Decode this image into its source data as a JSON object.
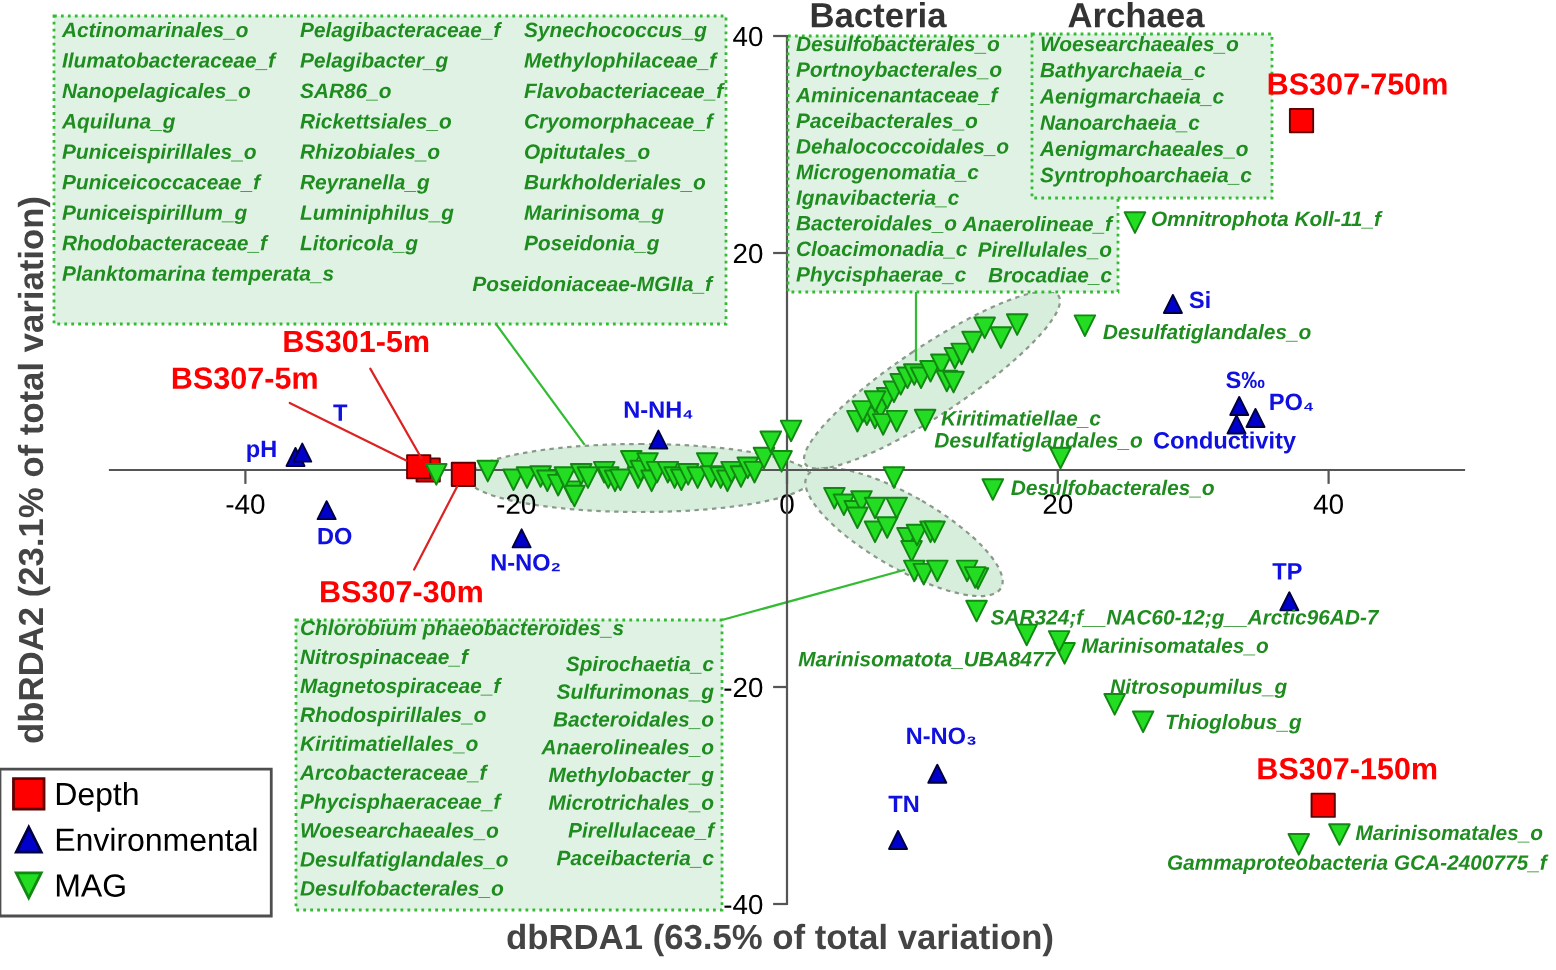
{
  "chart_data": {
    "type": "scatter",
    "xlabel": "dbRDA1 (63.5% of total variation)",
    "ylabel": "dbRDA2 (23.1% of total variation)",
    "xlim": [
      -50,
      50
    ],
    "ylim": [
      -40,
      40
    ],
    "xticks": [
      -40,
      -20,
      0,
      20,
      40
    ],
    "yticks": [
      -40,
      -20,
      20,
      40
    ],
    "grid": false,
    "legend": "bottom left",
    "series": [
      {
        "name": "Depth",
        "color": "#ff0000",
        "marker": "square",
        "x": [
          -26.5,
          -27.2,
          -23.9,
          38.0,
          39.6
        ],
        "values": [
          0.0,
          0.3,
          -0.4,
          32.2,
          -30.9
        ]
      },
      {
        "name": "Environmental",
        "color": "#0000cc",
        "marker": "triangle",
        "x": [
          -36.3,
          -35.8,
          -34.0,
          -19.6,
          -9.5,
          28.5,
          33.4,
          34.6,
          33.2,
          37.1,
          11.1,
          8.2
        ],
        "values": [
          1.2,
          1.6,
          -3.7,
          -6.3,
          2.8,
          15.3,
          5.9,
          4.8,
          4.2,
          -12.1,
          -28.0,
          -34.1
        ]
      },
      {
        "name": "MAG",
        "color": "#22dd22",
        "marker": "triangle_down",
        "x": [
          -25.9,
          -22.1,
          -20.2,
          -19.2,
          -18.2,
          -17.7,
          -16.9,
          -15.9,
          -15.7,
          -16.4,
          -15.2,
          -14.7,
          -13.5,
          -13.2,
          -12.7,
          -12.3,
          -11.5,
          -11.0,
          -10.8,
          -10.3,
          -10.0,
          -9.6,
          -8.8,
          -8.3,
          -7.8,
          -7.3,
          -6.6,
          -5.9,
          -5.6,
          -4.9,
          -4.4,
          -4.1,
          -3.4,
          -2.9,
          -2.4,
          -1.7,
          -1.2,
          -0.4,
          0.3,
          5.2,
          5.9,
          6.5,
          6.9,
          7.4,
          7.9,
          8.4,
          8.9,
          9.4,
          9.9,
          10.6,
          11.4,
          11.8,
          12.4,
          5.6,
          6.5,
          7.1,
          8.1,
          12.3,
          12.9,
          13.7,
          15.8,
          14.6,
          17.0,
          7.9,
          3.5,
          4.2,
          5.0,
          5.5,
          6.5,
          5.2,
          6.5,
          7.4,
          8.1,
          8.9,
          9.2,
          9.6,
          10.6,
          9.4,
          10.1,
          11.1,
          13.3,
          14.1,
          10.9,
          13.9,
          20.5,
          25.7,
          22.0,
          10.2,
          20.2,
          15.2,
          14.0,
          17.7,
          20.1,
          24.2,
          26.3,
          40.8,
          37.8
        ],
        "values": [
          -0.4,
          -0.1,
          -0.9,
          -0.7,
          -0.6,
          -1.0,
          -1.4,
          -2.0,
          -2.4,
          -0.7,
          -0.4,
          -0.7,
          -0.2,
          -0.7,
          -1.0,
          -0.9,
          0.8,
          -0.7,
          -0.1,
          0.6,
          -1.0,
          -0.2,
          -0.2,
          -0.7,
          -0.9,
          -0.4,
          -0.7,
          0.6,
          -0.6,
          -0.7,
          -1.0,
          -0.2,
          -0.6,
          0.2,
          -0.2,
          1.1,
          2.6,
          0.8,
          3.6,
          4.5,
          5.1,
          4.8,
          5.7,
          6.6,
          7.2,
          7.9,
          8.5,
          8.8,
          8.5,
          9.1,
          9.7,
          8.2,
          10.3,
          5.4,
          6.3,
          4.2,
          4.5,
          8.1,
          10.7,
          11.8,
          12.2,
          13.1,
          13.4,
          -0.7,
          -2.6,
          -3.2,
          -3.8,
          -2.9,
          -3.5,
          -4.4,
          -5.7,
          -5.3,
          -3.5,
          -6.3,
          -7.5,
          -6.0,
          -5.7,
          -9.3,
          -9.6,
          -9.3,
          -9.3,
          -10.0,
          -5.7,
          -9.9,
          -16.9,
          22.8,
          13.3,
          4.6,
          1.1,
          -1.8,
          -13.0,
          -15.2,
          -15.8,
          -21.6,
          -23.2,
          -33.6,
          -34.5
        ]
      }
    ],
    "annotations": [
      "Bacteria",
      "Archaea",
      "Actinomarinales_o\nIlumatobacteraceae_f\nNanopelagicales_o\nAquiluna_g\nPuniceispirillales_o\nPuniceicoccaceae_f\nPuniceispirillum_g\nRhodobacteraceae_f\nPlanktomarina temperata_s",
      "Pelagibacteraceae_f\nPelagibacter_g\nSAR86_o\nRickettsiales_o\nRhizobiales_o\nReyranella_g\nLuminiphilus_g\nLitoricola_g",
      "Synechococcus_g\nMethylophilaceae_f\nFlavobacteriaceae_f\nCryomorphaceae_f\nOpitutales_o\nBurkholderiales_o\nMarinisoma_g\nPoseidonia_g",
      "Poseidoniaceae-MGIIa_f",
      "Desulfobacterales_o\nPortnoybacterales_o\nAminicenantaceae_f\nPaceibacterales_o\nDehalococcoidales_o\nMicrogenomatia_c\nIgnavibacteria_c\nBacteroidales_o\nCloacimonadia_c\nPhycisphaerae_c",
      "Anaerolineae_f\nPirellulales_o\nBrocadiae_c",
      "Woesearchaeales_o\nBathyarchaeia_c\nAenigmarchaeia_c\nNanoarchaeia_c\nAenigmarchaeales_o\nSyntrophoarchaeia_c",
      "Chlorobium phaeobacteroides_s\nNitrospinaceae_f\nMagnetospiraceae_f\nRhodospirillales_o\nKiritimatiellales_o\nArcobacteraceae_f\nPhycisphaeraceae_f\nWoesearchaeales_o\nDesulfatiglandales_o\nDesulfobacterales_o",
      "Spirochaetia_c\nSulfurimonas_g\nBacteroidales_o\nAnaerolineales_o\nMethylobacter_g\nMicrotrichales_o\nPirellulaceae_f\nPaceibacteria_c",
      {
        "text": "BS301-5m",
        "x": -26.5,
        "y": 0.0
      },
      {
        "text": "BS307-5m",
        "x": -27.2,
        "y": 0.3
      },
      {
        "text": "BS307-30m",
        "x": -23.9,
        "y": -0.4
      },
      {
        "text": "BS307-750m",
        "x": 38.0,
        "y": 32.2
      },
      {
        "text": "BS307-150m",
        "x": 39.6,
        "y": -30.9
      },
      {
        "text": "pH",
        "x": -36.3,
        "y": 1.2
      },
      {
        "text": "T",
        "x": -35.8,
        "y": 1.6
      },
      {
        "text": "DO",
        "x": -34.0,
        "y": -3.7
      },
      {
        "text": "N-NO₂",
        "x": -19.6,
        "y": -6.3
      },
      {
        "text": "N-NH₄",
        "x": -9.5,
        "y": 2.8
      },
      {
        "text": "Si",
        "x": 28.5,
        "y": 15.3
      },
      {
        "text": "S‰",
        "x": 33.4,
        "y": 5.9
      },
      {
        "text": "PO₄",
        "x": 34.6,
        "y": 4.8
      },
      {
        "text": "Conductivity",
        "x": 33.2,
        "y": 4.2
      },
      {
        "text": "TP",
        "x": 37.1,
        "y": -12.1
      },
      {
        "text": "N-NO₃",
        "x": 11.1,
        "y": -28.0
      },
      {
        "text": "TN",
        "x": 8.2,
        "y": -34.1
      },
      {
        "text": "Omnitrophota Koll-11_f",
        "x": 25.7,
        "y": 22.8
      },
      {
        "text": "Desulfatiglandales_o",
        "x": 22.0,
        "y": 13.3
      },
      {
        "text": "Kiritimatiellae_c",
        "x": 10.2,
        "y": 4.6
      },
      {
        "text": "Desulfatiglandales_o",
        "x": 20.2,
        "y": 1.1
      },
      {
        "text": "Desulfobacterales_o",
        "x": 15.2,
        "y": -1.8
      },
      {
        "text": "SAR324;f__NAC60-12;g__Arctic96AD-7",
        "x": 14.0,
        "y": -13.0
      },
      {
        "text": "Marinisomatota_UBA8477",
        "x": 17.7,
        "y": -15.2
      },
      {
        "text": "Marinisomatales_o",
        "x": 20.1,
        "y": -15.8
      },
      {
        "text": "Nitrosopumilus_g",
        "x": 24.2,
        "y": -21.6
      },
      {
        "text": "Thioglobus_g",
        "x": 26.3,
        "y": -23.2
      },
      {
        "text": "Marinisomatales_o",
        "x": 40.8,
        "y": -33.6
      },
      {
        "text": "Gammaproteobacteria GCA-2400775_f",
        "x": 37.8,
        "y": -34.5
      }
    ]
  }
}
